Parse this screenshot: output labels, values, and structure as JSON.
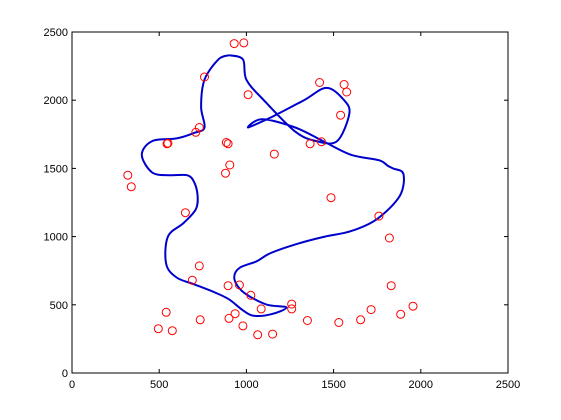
{
  "chart_data": {
    "type": "scatter",
    "xlim": [
      0,
      2500
    ],
    "ylim": [
      0,
      2500
    ],
    "x_ticks": [
      "0",
      "500",
      "1000",
      "1500",
      "2000",
      "2500"
    ],
    "y_ticks": [
      "0",
      "500",
      "1000",
      "1500",
      "2000",
      "2500"
    ],
    "grid": false,
    "legend": "none",
    "series": [
      {
        "kind": "points",
        "marker": "circle",
        "color": "#ff0000",
        "x": [
          930,
          985,
          760,
          1010,
          1420,
          1560,
          1575,
          1540,
          1430,
          1365,
          1160,
          885,
          895,
          905,
          880,
          730,
          710,
          550,
          545,
          320,
          340,
          650,
          730,
          690,
          540,
          495,
          575,
          735,
          895,
          960,
          1025,
          1085,
          900,
          935,
          980,
          1065,
          1150,
          1260,
          1260,
          1350,
          1530,
          1655,
          1715,
          1760,
          1820,
          1830,
          1885,
          1955,
          1485
        ],
        "y": [
          2415,
          2420,
          2170,
          2040,
          2130,
          2115,
          2060,
          1890,
          1695,
          1680,
          1605,
          1690,
          1680,
          1525,
          1465,
          1800,
          1765,
          1685,
          1680,
          1450,
          1365,
          1175,
          785,
          680,
          445,
          325,
          310,
          390,
          640,
          645,
          570,
          470,
          400,
          435,
          345,
          280,
          285,
          505,
          470,
          385,
          370,
          390,
          465,
          1150,
          990,
          640,
          430,
          490,
          1285
        ]
      },
      {
        "kind": "curve",
        "color": "#0000cc",
        "x": [
          900,
          980,
          1000,
          1100,
          1280,
          1400,
          1520,
          1590,
          1560,
          1460,
          1330,
          1150,
          1010,
          1090,
          1280,
          1440,
          1600,
          1760,
          1810,
          1840,
          1900,
          1880,
          1750,
          1600,
          1450,
          1300,
          1140,
          1060,
          960,
          930,
          960,
          1020,
          1120,
          1230,
          1140,
          1040,
          980,
          900,
          820,
          700,
          600,
          540,
          550,
          640,
          710,
          720,
          700,
          660,
          560,
          460,
          400,
          460,
          600,
          700,
          760,
          740,
          760,
          840,
          900
        ],
        "y": [
          2330,
          2300,
          2150,
          2000,
          1770,
          1700,
          1700,
          1900,
          2000,
          2090,
          2000,
          1880,
          1800,
          1860,
          1800,
          1700,
          1600,
          1560,
          1520,
          1500,
          1460,
          1300,
          1130,
          1040,
          1000,
          950,
          880,
          820,
          770,
          700,
          620,
          560,
          500,
          480,
          430,
          420,
          460,
          540,
          590,
          650,
          700,
          800,
          1000,
          1100,
          1200,
          1300,
          1400,
          1450,
          1450,
          1470,
          1600,
          1700,
          1720,
          1760,
          1800,
          1950,
          2150,
          2300,
          2330
        ]
      }
    ]
  }
}
